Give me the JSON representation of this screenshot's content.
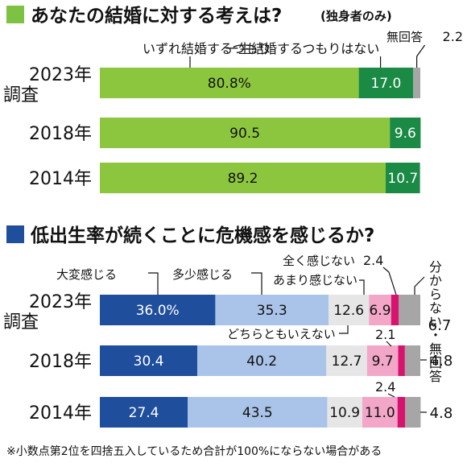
{
  "chart_data": [
    {
      "type": "bar",
      "orientation": "horizontal",
      "stacked": true,
      "title": "あなたの結婚に対する考えは?",
      "subtitle": "(独身者のみ)",
      "title_marker_color": "#7dc242",
      "categories": [
        {
          "line1": "2023年",
          "line2": "調査"
        },
        {
          "line1": "2018年",
          "line2": ""
        },
        {
          "line1": "2014年",
          "line2": ""
        }
      ],
      "series": [
        {
          "name": "いずれ結婚するつもり",
          "color": "#8cc63f",
          "text_color": "#111111",
          "values": [
            80.8,
            90.5,
            89.2
          ],
          "labels": [
            "80.8%",
            "90.5",
            "89.2"
          ]
        },
        {
          "name": "一生結婚するつもりはない",
          "color": "#1a8a45",
          "text_color": "#ffffff",
          "values": [
            17.0,
            9.6,
            10.7
          ],
          "labels": [
            "17.0",
            "9.6",
            "10.7"
          ]
        },
        {
          "name": "無回答",
          "color": "#a6a6a6",
          "text_color": "#111111",
          "values": [
            2.2,
            0,
            0
          ],
          "labels": [
            "2.2",
            "",
            ""
          ]
        }
      ]
    },
    {
      "type": "bar",
      "orientation": "horizontal",
      "stacked": true,
      "title": "低出生率が続くことに危機感を感じるか?",
      "title_marker_color": "#1f4e9c",
      "categories": [
        {
          "line1": "2023年",
          "line2": "調査"
        },
        {
          "line1": "2018年",
          "line2": ""
        },
        {
          "line1": "2014年",
          "line2": ""
        }
      ],
      "series": [
        {
          "name": "大変感じる",
          "color": "#1f4e9c",
          "text_color": "#ffffff",
          "values": [
            36.0,
            30.4,
            27.4
          ],
          "labels": [
            "36.0%",
            "30.4",
            "27.4"
          ]
        },
        {
          "name": "多少感じる",
          "color": "#a9c4e8",
          "text_color": "#111111",
          "values": [
            35.3,
            40.2,
            43.5
          ],
          "labels": [
            "35.3",
            "40.2",
            "43.5"
          ]
        },
        {
          "name": "どちらともいえない",
          "color": "#e6e6e6",
          "text_color": "#111111",
          "values": [
            12.6,
            12.7,
            10.9
          ],
          "labels": [
            "12.6",
            "12.7",
            "10.9"
          ]
        },
        {
          "name": "あまり感じない",
          "color": "#f2a7c8",
          "text_color": "#111111",
          "values": [
            6.9,
            9.7,
            11.0
          ],
          "labels": [
            "6.9",
            "9.7",
            "11.0"
          ]
        },
        {
          "name": "全く感じない",
          "color": "#d6136f",
          "text_color": "#111111",
          "values": [
            2.4,
            2.1,
            2.4
          ],
          "labels": [
            "2.4",
            "2.1",
            "2.4"
          ]
        },
        {
          "name": "分からない・無回答",
          "color": "#a6a6a6",
          "text_color": "#111111",
          "values": [
            6.7,
            4.8,
            4.8
          ],
          "labels": [
            "6.7",
            "4.8",
            "4.8"
          ]
        }
      ]
    }
  ],
  "footnote": "※小数点第2位を四捨五入しているため合計が100%にならない場合がある"
}
